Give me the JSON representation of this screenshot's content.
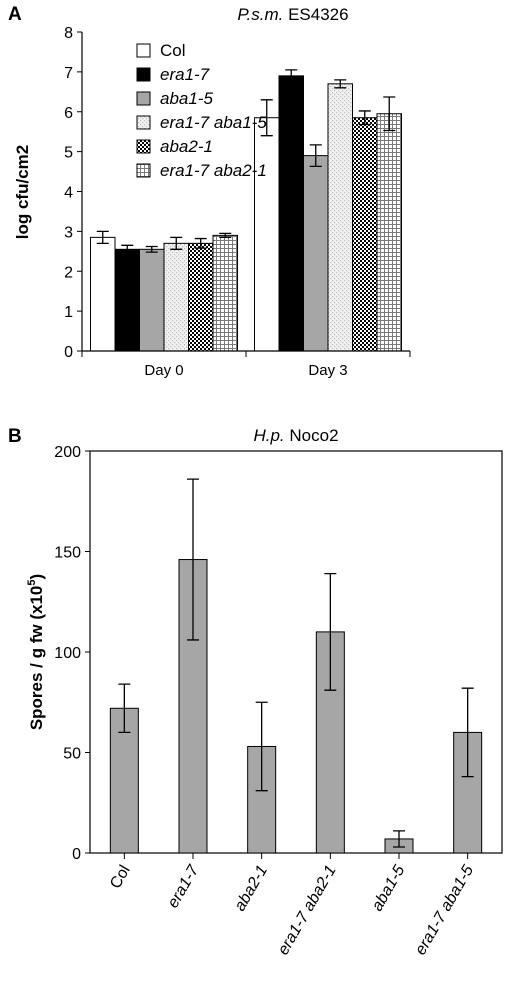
{
  "chart_data": [
    {
      "panel_label": "A",
      "type": "bar",
      "title_italic": "P.s.m.",
      "title_rest": " ES4326",
      "ylabel": "log cfu/cm2",
      "xlabel": "",
      "ylim": [
        0,
        8
      ],
      "yticks": [
        "0",
        "1",
        "2",
        "3",
        "4",
        "5",
        "6",
        "7",
        "8"
      ],
      "categories": [
        "Day 0",
        "Day 3"
      ],
      "legend_position": "top-left",
      "series": [
        {
          "name": "Col",
          "italic": false,
          "pattern": "white",
          "values": [
            2.85,
            5.85
          ],
          "errors": [
            0.15,
            0.45
          ]
        },
        {
          "name": "era1-7",
          "italic": true,
          "pattern": "black",
          "values": [
            2.55,
            6.9
          ],
          "errors": [
            0.1,
            0.15
          ]
        },
        {
          "name": "aba1-5",
          "italic": true,
          "pattern": "gray",
          "values": [
            2.55,
            4.9
          ],
          "errors": [
            0.07,
            0.27
          ]
        },
        {
          "name": "era1-7 aba1-5",
          "italic": true,
          "pattern": "lightdots",
          "values": [
            2.7,
            6.7
          ],
          "errors": [
            0.15,
            0.1
          ]
        },
        {
          "name": "aba2-1",
          "italic": true,
          "pattern": "checker",
          "values": [
            2.7,
            5.85
          ],
          "errors": [
            0.12,
            0.17
          ]
        },
        {
          "name": "era1-7 aba2-1",
          "italic": true,
          "pattern": "grid",
          "values": [
            2.9,
            5.95
          ],
          "errors": [
            0.05,
            0.42
          ]
        }
      ]
    },
    {
      "panel_label": "B",
      "type": "bar",
      "title_italic": "H.p.",
      "title_rest": " Noco2",
      "ylabel_main": "Spores / g fw  (x10",
      "ylabel_sup": "5",
      "ylabel_end": ")",
      "xlabel": "",
      "ylim": [
        0,
        200
      ],
      "yticks": [
        "0",
        "50",
        "100",
        "150",
        "200"
      ],
      "categories": [
        "Col",
        "era1-7",
        "aba2-1",
        "era1-7 aba2-1",
        "aba1-5",
        "era1-7 aba1-5"
      ],
      "category_italic": [
        false,
        true,
        true,
        true,
        true,
        true
      ],
      "values": [
        72,
        146,
        53,
        110,
        7,
        60
      ],
      "errors": [
        12,
        40,
        22,
        29,
        4,
        22
      ],
      "bar_color": "#a6a6a6"
    }
  ]
}
